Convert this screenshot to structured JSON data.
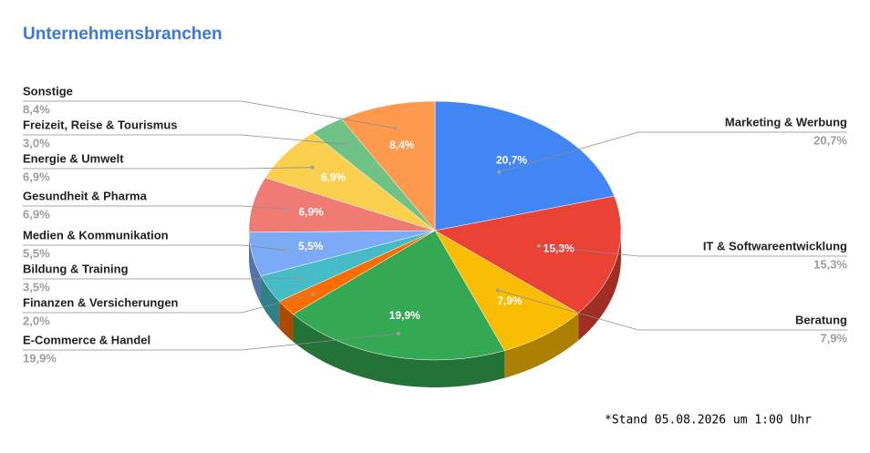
{
  "chart_data": {
    "type": "pie",
    "title": "Unternehmensbranchen",
    "categories": [
      "Marketing & Werbung",
      "IT & Softwareentwicklung",
      "Beratung",
      "E-Commerce & Handel",
      "Finanzen & Versicherungen",
      "Bildung & Training",
      "Medien & Kommunikation",
      "Gesundheit & Pharma",
      "Energie & Umwelt",
      "Freizeit, Reise & Tourismus",
      "Sonstige"
    ],
    "values": [
      20.7,
      15.3,
      7.9,
      19.9,
      2.0,
      3.5,
      5.5,
      6.9,
      6.9,
      3.0,
      8.4
    ],
    "value_labels": [
      "20,7%",
      "15,3%",
      "7,9%",
      "19,9%",
      "2,0%",
      "3,5%",
      "5,5%",
      "6,9%",
      "6,9%",
      "3,0%",
      "8,4%"
    ],
    "colors": [
      "#4285f4",
      "#ea4335",
      "#fbbc04",
      "#34a853",
      "#ff6d01",
      "#46bdc6",
      "#7baaf7",
      "#f07b72",
      "#fcd04f",
      "#71c287",
      "#ff994d"
    ],
    "footnote": "*Stand 05.08.2026 um 1:00 Uhr"
  }
}
